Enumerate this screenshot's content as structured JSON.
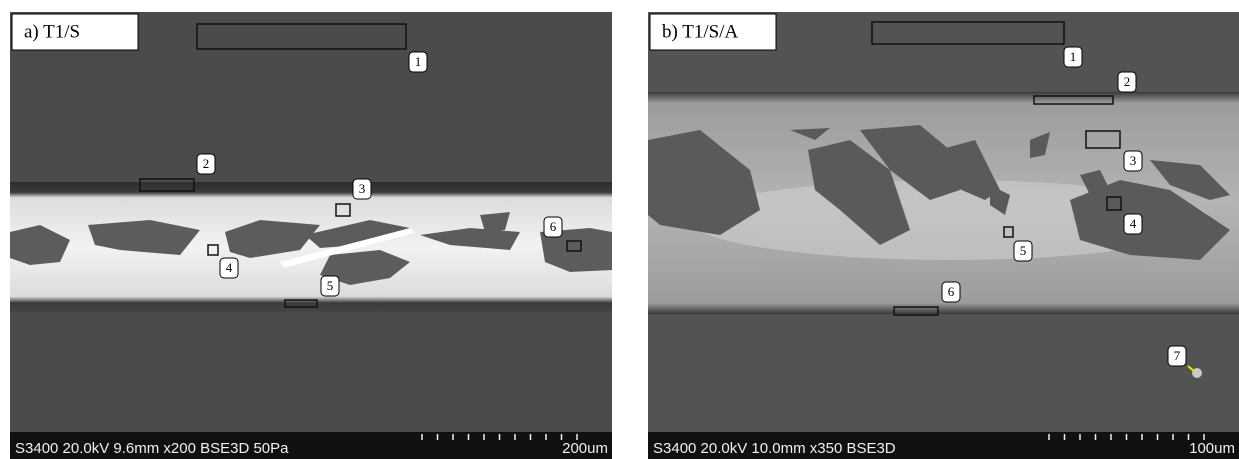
{
  "panels": [
    {
      "label": "a) T1/S",
      "info": "S3400 20.0kV 9.6mm x200 BSE3D 50Pa",
      "scale": "200um",
      "markers": [
        "1",
        "2",
        "3",
        "4",
        "5",
        "6"
      ]
    },
    {
      "label": "b) T1/S/A",
      "info": "S3400 20.0kV 10.0mm x350 BSE3D",
      "scale": "100um",
      "markers": [
        "1",
        "2",
        "3",
        "4",
        "5",
        "6",
        "7"
      ]
    }
  ]
}
